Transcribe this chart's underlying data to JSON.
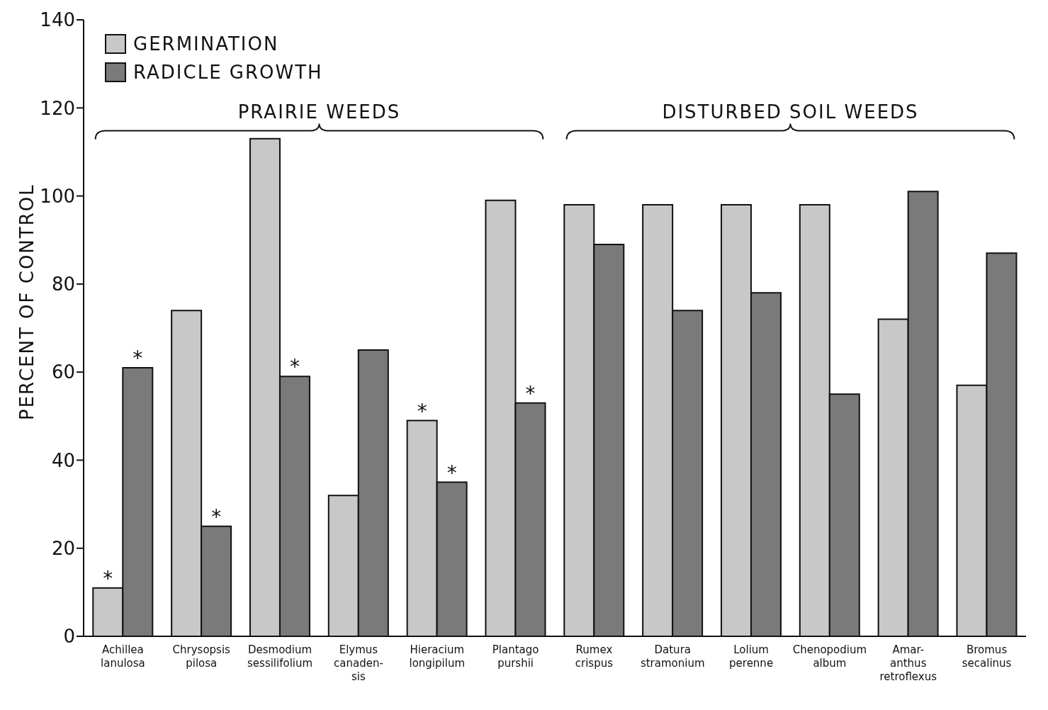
{
  "chart_data": {
    "type": "bar",
    "ylabel": "PERCENT OF CONTROL",
    "categories": [
      "Achillea\nlanulosa",
      "Chrysopsis\npilosa",
      "Desmodium\nsessilifolium",
      "Elymus\ncanaden-\nsis",
      "Hieracium\nlongipilum",
      "Plantago\npurshii",
      "Rumex\ncrispus",
      "Datura\nstramonium",
      "Lolium\nperenne",
      "Chenopodium\nalbum",
      "Amar-\nanthus\nretroflexus",
      "Bromus\nsecalinus"
    ],
    "series": [
      {
        "name": "GERMINATION",
        "color": "#c8c8c8",
        "values": [
          11,
          74,
          113,
          32,
          49,
          99,
          98,
          98,
          98,
          98,
          72,
          57
        ]
      },
      {
        "name": "RADICLE GROWTH",
        "color": "#7a7a7a",
        "values": [
          61,
          25,
          59,
          65,
          35,
          53,
          89,
          74,
          78,
          55,
          101,
          87
        ]
      }
    ],
    "ylim": [
      0,
      140
    ],
    "yticks": [
      0,
      20,
      40,
      60,
      80,
      100,
      120,
      140
    ],
    "grid": false,
    "legend": "top left",
    "annotations": [
      "PRAIRIE WEEDS",
      "DISTURBED SOIL WEEDS",
      {
        "text": "*",
        "x": "Achillea\nlanulosa",
        "y": 11
      },
      {
        "text": "*",
        "x": "Achillea\nlanulosa",
        "y": 61
      },
      {
        "text": "*",
        "x": "Chrysopsis\npilosa",
        "y": 25
      },
      {
        "text": "*",
        "x": "Desmodium\nsessilifolium",
        "y": 59
      },
      {
        "text": "*",
        "x": "Hieracium\nlongipilum",
        "y": 49
      },
      {
        "text": "*",
        "x": "Hieracium\nlongipilum",
        "y": 35
      },
      {
        "text": "*",
        "x": "Plantago\npurshii",
        "y": 53
      }
    ]
  }
}
